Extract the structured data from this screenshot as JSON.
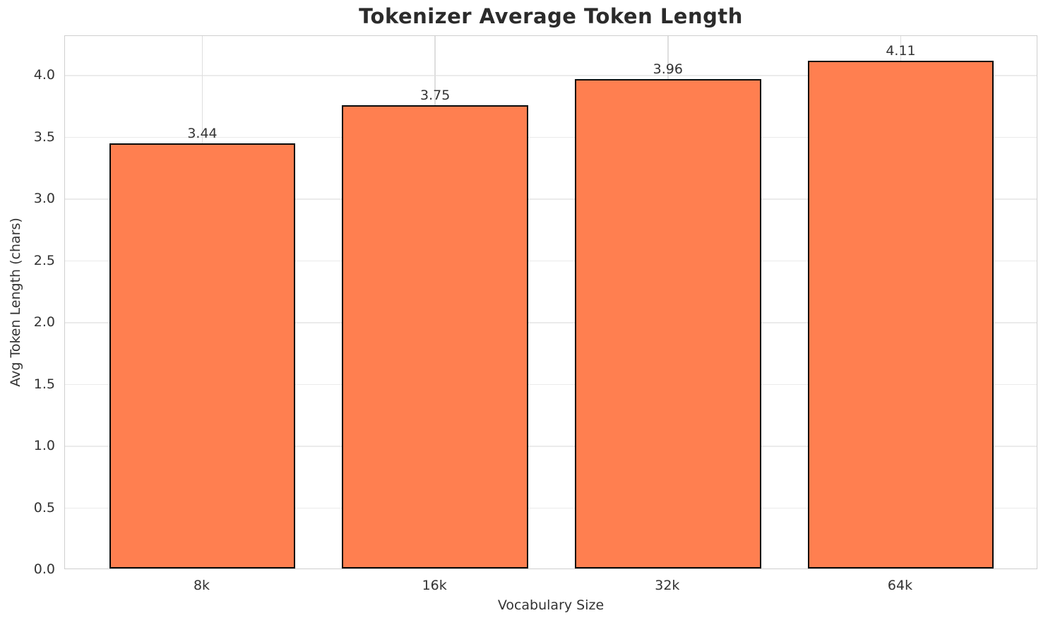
{
  "chart_data": {
    "type": "bar",
    "title": "Tokenizer Average Token Length",
    "xlabel": "Vocabulary Size",
    "ylabel": "Avg Token Length (chars)",
    "categories": [
      "8k",
      "16k",
      "32k",
      "64k"
    ],
    "values": [
      3.44,
      3.75,
      3.96,
      4.11
    ],
    "bar_value_labels": [
      "3.44",
      "3.75",
      "3.96",
      "4.11"
    ],
    "ytick_values": [
      0.0,
      0.5,
      1.0,
      1.5,
      2.0,
      2.5,
      3.0,
      3.5,
      4.0
    ],
    "ytick_labels": [
      "0.0",
      "0.5",
      "1.0",
      "1.5",
      "2.0",
      "2.5",
      "3.0",
      "3.5",
      "4.0"
    ],
    "ylim": [
      0,
      4.32
    ],
    "xlim": [
      -0.59,
      3.59
    ],
    "bar_half_width": 0.4,
    "grid": true,
    "legend": null,
    "bar_color": "#FF7F50",
    "bar_edge_color": "#0a0a0a",
    "grid_color_horizontal": "#ebebeb",
    "grid_color_vertical": "#dedede",
    "spine_color": "#cfcfcf",
    "text_color": "#333333",
    "title_color": "#2b2b2b"
  }
}
